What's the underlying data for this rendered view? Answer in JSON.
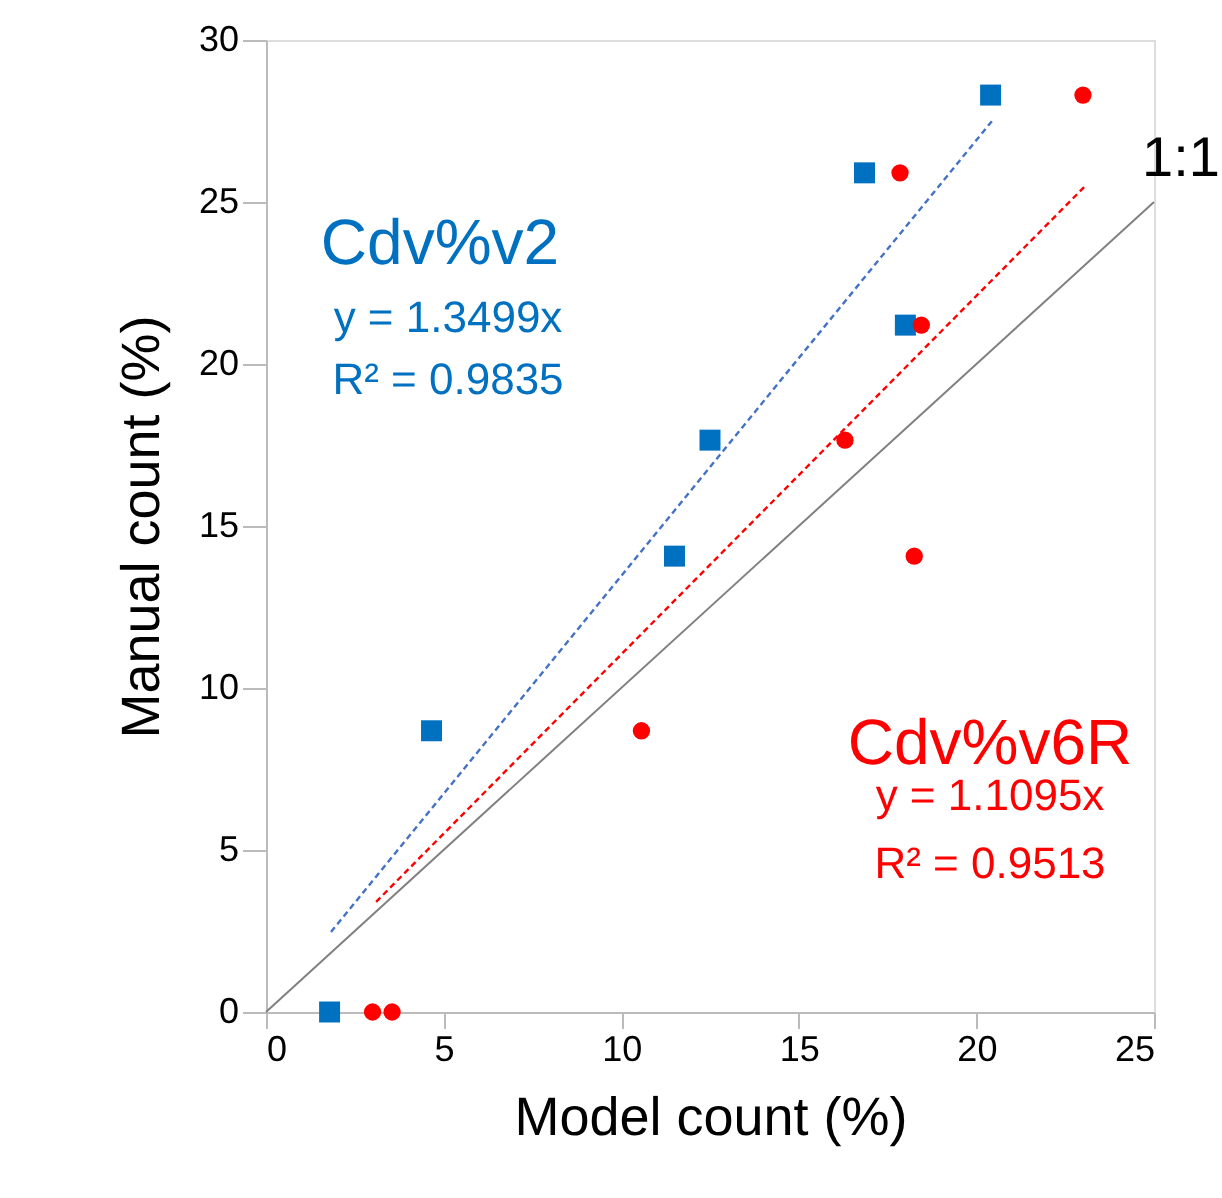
{
  "chart_data": {
    "type": "scatter",
    "xlabel": "Model count (%)",
    "ylabel": "Manual count (%)",
    "xlim": [
      0,
      25
    ],
    "ylim": [
      0,
      30
    ],
    "xticks": [
      0,
      5,
      10,
      15,
      20,
      25
    ],
    "yticks": [
      0,
      5,
      10,
      15,
      20,
      25,
      30
    ],
    "grid": false,
    "legend": false,
    "series": [
      {
        "name": "Cdv%v2",
        "marker": "square",
        "color": "#0070c0",
        "x": [
          1.79,
          4.66,
          11.5,
          12.5,
          16.85,
          18.0,
          20.4
        ],
        "values": [
          0,
          8.68,
          14.07,
          17.65,
          25.9,
          21.2,
          28.3
        ]
      },
      {
        "type": "line",
        "line_style": "dashed",
        "color": "#4472c4",
        "x": [
          1.83,
          20.44
        ],
        "values": [
          2.47,
          27.5
        ]
      },
      {
        "name": "Cdv%v6R",
        "marker": "circle",
        "color": "#ff0000",
        "x": [
          3.0,
          3.55,
          10.57,
          16.3,
          18.25,
          17.85,
          18.45,
          23.0
        ],
        "values": [
          0,
          0,
          8.68,
          17.65,
          14.07,
          25.9,
          21.2,
          28.3
        ]
      },
      {
        "type": "line",
        "line_style": "dashed",
        "color": "#ff0000",
        "x": [
          3.1,
          23.07
        ],
        "values": [
          3.4,
          25.5
        ]
      },
      {
        "name": "1:1",
        "type": "line",
        "line_style": "solid",
        "color": "#808080",
        "x": [
          0,
          25
        ],
        "values": [
          0,
          25
        ]
      }
    ],
    "annotations": [
      "y = 1.3499x",
      "R² = 0.9835",
      "y = 1.1095x",
      "R² = 0.9513"
    ]
  }
}
